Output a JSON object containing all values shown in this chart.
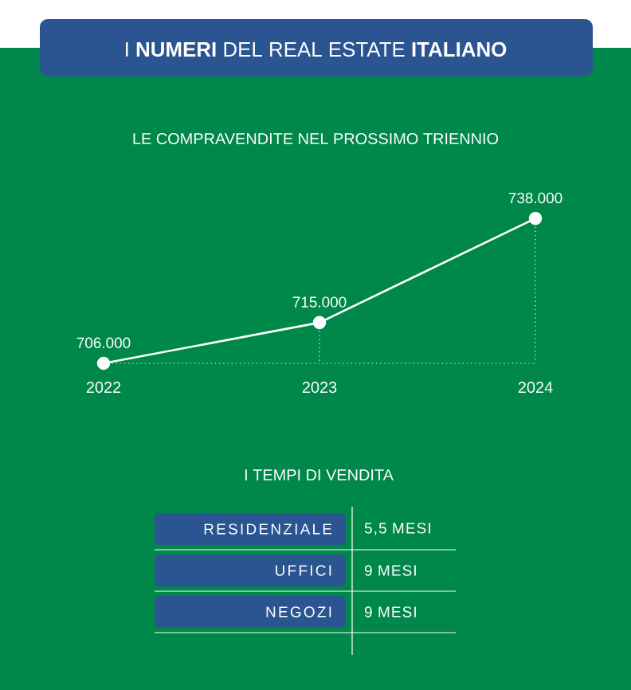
{
  "chart_data": [
    {
      "type": "line",
      "title": "I **NUMERI** DEL REAL ESTATE **ITALIANO**",
      "subtitle": "LE COMPRAVENDITE NEL PROSSIMO TRIENNIO",
      "categories": [
        "2022",
        "2023",
        "2024"
      ],
      "values": [
        706000,
        715000,
        738000
      ],
      "value_labels": [
        "706.000",
        "715.000",
        "738.000"
      ],
      "color": "#ffffff",
      "marker": "circle"
    },
    {
      "type": "other",
      "title": "I TEMPI DI VENDITA",
      "annotations": [
        "RESIDENZIALE",
        "5,5 MESI",
        "UFFICI",
        "9 MESI",
        "NEGOZI",
        "9 MESI"
      ]
    }
  ]
}
